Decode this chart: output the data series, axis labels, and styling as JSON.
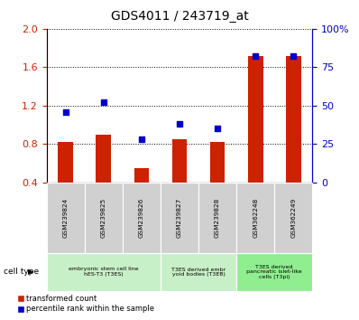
{
  "title": "GDS4011 / 243719_at",
  "samples": [
    "GSM239824",
    "GSM239825",
    "GSM239826",
    "GSM239827",
    "GSM239828",
    "GSM362248",
    "GSM362249"
  ],
  "transformed_count": [
    0.82,
    0.9,
    0.55,
    0.85,
    0.82,
    1.72,
    1.72
  ],
  "percentile_rank": [
    46,
    52,
    28,
    38,
    35,
    82,
    82
  ],
  "left_ylim": [
    0.4,
    2.0
  ],
  "right_ylim": [
    0,
    100
  ],
  "left_yticks": [
    0.4,
    0.8,
    1.2,
    1.6,
    2.0
  ],
  "right_yticks": [
    0,
    25,
    50,
    75,
    100
  ],
  "right_yticklabels": [
    "0",
    "25",
    "50",
    "75",
    "100%"
  ],
  "bar_color": "#cc2200",
  "dot_color": "#0000cc",
  "cell_types": [
    {
      "label": "embryonic stem cell line\nhES-T3 (T3ES)",
      "start": 0,
      "end": 3,
      "color": "#c8f0c8"
    },
    {
      "label": "T3ES derived embr\nyoid bodies (T3EB)",
      "start": 3,
      "end": 5,
      "color": "#c8f0c8"
    },
    {
      "label": "T3ES derived\npancreatic islet-like\ncells (T3pi)",
      "start": 5,
      "end": 7,
      "color": "#90ee90"
    }
  ],
  "legend_bar_label": "transformed count",
  "legend_dot_label": "percentile rank within the sample",
  "cell_type_label": "cell type",
  "tick_color_left": "#cc2200",
  "tick_color_right": "#0000cc",
  "sample_box_color": "#d0d0d0",
  "bar_width": 0.4
}
